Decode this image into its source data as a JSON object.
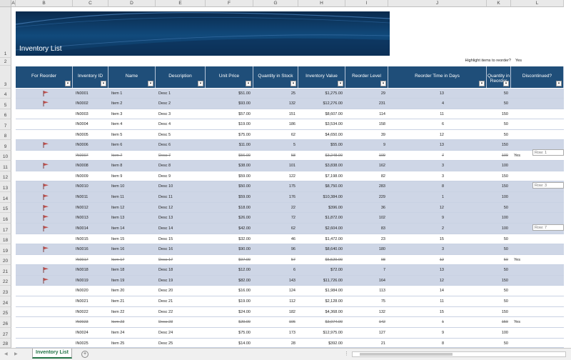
{
  "workbook": {
    "sheet_tab": "Inventory List",
    "add_sheet_symbol": "+",
    "separator": "⋮",
    "nav_prev": "◀",
    "nav_next": "▶"
  },
  "columns": [
    "A",
    "B",
    "C",
    "D",
    "E",
    "F",
    "G",
    "H",
    "I",
    "J",
    "K",
    "L"
  ],
  "row_numbers": [
    "1",
    "2",
    "3",
    "4",
    "5",
    "6",
    "7",
    "8",
    "9",
    "10",
    "11",
    "12",
    "13",
    "14",
    "15",
    "16",
    "17",
    "18",
    "19",
    "20",
    "21",
    "22",
    "23",
    "24",
    "25",
    "26",
    "27",
    "28"
  ],
  "banner": {
    "title": "Inventory List"
  },
  "highlight": {
    "label": "Highlight items to reorder?",
    "value": "Yes"
  },
  "table": {
    "headers": [
      "For Reorder",
      "Inventory ID",
      "Name",
      "Description",
      "Unit Price",
      "Quantity in Stock",
      "Inventory Value",
      "Reorder Level",
      "Reorder Time in Days",
      "Quantity in Reorder",
      "Discontinued?"
    ],
    "filter_symbol": "▾",
    "rows": [
      {
        "flag": true,
        "id": "IN0001",
        "name": "Item 1",
        "desc": "Desc 1",
        "price": "$51.00",
        "qty": "25",
        "value": "$1,275.00",
        "level": "29",
        "days": "13",
        "reorder": "50",
        "disc": "",
        "band": true,
        "strike": false
      },
      {
        "flag": true,
        "id": "IN0002",
        "name": "Item 2",
        "desc": "Desc 2",
        "price": "$93.00",
        "qty": "132",
        "value": "$12,276.00",
        "level": "231",
        "days": "4",
        "reorder": "50",
        "disc": "",
        "band": true,
        "strike": false
      },
      {
        "flag": false,
        "id": "IN0003",
        "name": "Item 3",
        "desc": "Desc 3",
        "price": "$57.00",
        "qty": "151",
        "value": "$8,607.00",
        "level": "114",
        "days": "11",
        "reorder": "150",
        "disc": "",
        "band": false,
        "strike": false
      },
      {
        "flag": false,
        "id": "IN0004",
        "name": "Item 4",
        "desc": "Desc 4",
        "price": "$19.00",
        "qty": "186",
        "value": "$3,534.00",
        "level": "158",
        "days": "6",
        "reorder": "50",
        "disc": "",
        "band": false,
        "strike": false
      },
      {
        "flag": false,
        "id": "IN0005",
        "name": "Item 5",
        "desc": "Desc 5",
        "price": "$75.00",
        "qty": "62",
        "value": "$4,650.00",
        "level": "39",
        "days": "12",
        "reorder": "50",
        "disc": "",
        "band": false,
        "strike": false
      },
      {
        "flag": true,
        "id": "IN0006",
        "name": "Item 6",
        "desc": "Desc 6",
        "price": "$11.00",
        "qty": "5",
        "value": "$55.00",
        "level": "9",
        "days": "13",
        "reorder": "150",
        "disc": "",
        "band": true,
        "strike": false
      },
      {
        "flag": false,
        "id": "IN0007",
        "name": "Item 7",
        "desc": "Desc 7",
        "price": "$56.00",
        "qty": "58",
        "value": "$3,248.00",
        "level": "109",
        "days": "7",
        "reorder": "100",
        "disc": "Yes",
        "band": false,
        "strike": true
      },
      {
        "flag": true,
        "id": "IN0008",
        "name": "Item 8",
        "desc": "Desc 8",
        "price": "$38.00",
        "qty": "101",
        "value": "$3,838.00",
        "level": "162",
        "days": "3",
        "reorder": "100",
        "disc": "",
        "band": true,
        "strike": false
      },
      {
        "flag": false,
        "id": "IN0009",
        "name": "Item 9",
        "desc": "Desc 9",
        "price": "$59.00",
        "qty": "122",
        "value": "$7,198.00",
        "level": "82",
        "days": "3",
        "reorder": "150",
        "disc": "",
        "band": false,
        "strike": false
      },
      {
        "flag": true,
        "id": "IN0010",
        "name": "Item 10",
        "desc": "Desc 10",
        "price": "$50.00",
        "qty": "175",
        "value": "$8,750.00",
        "level": "283",
        "days": "8",
        "reorder": "150",
        "disc": "",
        "band": true,
        "strike": false
      },
      {
        "flag": true,
        "id": "IN0011",
        "name": "Item 11",
        "desc": "Desc 11",
        "price": "$59.00",
        "qty": "176",
        "value": "$10,384.00",
        "level": "229",
        "days": "1",
        "reorder": "100",
        "disc": "",
        "band": true,
        "strike": false
      },
      {
        "flag": true,
        "id": "IN0012",
        "name": "Item 12",
        "desc": "Desc 12",
        "price": "$18.00",
        "qty": "22",
        "value": "$396.00",
        "level": "36",
        "days": "12",
        "reorder": "50",
        "disc": "",
        "band": true,
        "strike": false
      },
      {
        "flag": true,
        "id": "IN0013",
        "name": "Item 13",
        "desc": "Desc 13",
        "price": "$26.00",
        "qty": "72",
        "value": "$1,872.00",
        "level": "102",
        "days": "9",
        "reorder": "100",
        "disc": "",
        "band": true,
        "strike": false
      },
      {
        "flag": true,
        "id": "IN0014",
        "name": "Item 14",
        "desc": "Desc 14",
        "price": "$42.00",
        "qty": "62",
        "value": "$2,604.00",
        "level": "83",
        "days": "2",
        "reorder": "100",
        "disc": "",
        "band": true,
        "strike": false
      },
      {
        "flag": false,
        "id": "IN0015",
        "name": "Item 15",
        "desc": "Desc 15",
        "price": "$32.00",
        "qty": "46",
        "value": "$1,472.00",
        "level": "23",
        "days": "15",
        "reorder": "50",
        "disc": "",
        "band": false,
        "strike": false
      },
      {
        "flag": true,
        "id": "IN0016",
        "name": "Item 16",
        "desc": "Desc 16",
        "price": "$90.00",
        "qty": "96",
        "value": "$8,640.00",
        "level": "180",
        "days": "3",
        "reorder": "50",
        "disc": "",
        "band": true,
        "strike": false
      },
      {
        "flag": false,
        "id": "IN0017",
        "name": "Item 17",
        "desc": "Desc 17",
        "price": "$97.00",
        "qty": "57",
        "value": "$5,529.00",
        "level": "98",
        "days": "12",
        "reorder": "50",
        "disc": "Yes",
        "band": false,
        "strike": true
      },
      {
        "flag": true,
        "id": "IN0018",
        "name": "Item 18",
        "desc": "Desc 18",
        "price": "$12.00",
        "qty": "6",
        "value": "$72.00",
        "level": "7",
        "days": "13",
        "reorder": "50",
        "disc": "",
        "band": true,
        "strike": false
      },
      {
        "flag": true,
        "id": "IN0019",
        "name": "Item 19",
        "desc": "Desc 19",
        "price": "$82.00",
        "qty": "143",
        "value": "$11,726.00",
        "level": "164",
        "days": "12",
        "reorder": "150",
        "disc": "",
        "band": true,
        "strike": false
      },
      {
        "flag": false,
        "id": "IN0020",
        "name": "Item 20",
        "desc": "Desc 20",
        "price": "$16.00",
        "qty": "124",
        "value": "$1,984.00",
        "level": "113",
        "days": "14",
        "reorder": "50",
        "disc": "",
        "band": false,
        "strike": false
      },
      {
        "flag": false,
        "id": "IN0021",
        "name": "Item 21",
        "desc": "Desc 21",
        "price": "$19.00",
        "qty": "112",
        "value": "$2,128.00",
        "level": "75",
        "days": "11",
        "reorder": "50",
        "disc": "",
        "band": false,
        "strike": false
      },
      {
        "flag": false,
        "id": "IN0022",
        "name": "Item 22",
        "desc": "Desc 22",
        "price": "$24.00",
        "qty": "182",
        "value": "$4,368.00",
        "level": "132",
        "days": "15",
        "reorder": "150",
        "disc": "",
        "band": false,
        "strike": false
      },
      {
        "flag": false,
        "id": "IN0023",
        "name": "Item 23",
        "desc": "Desc 23",
        "price": "$29.00",
        "qty": "106",
        "value": "$3,074.00",
        "level": "142",
        "days": "1",
        "reorder": "150",
        "disc": "Yes",
        "band": false,
        "strike": true
      },
      {
        "flag": false,
        "id": "IN0024",
        "name": "Item 24",
        "desc": "Desc 24",
        "price": "$75.00",
        "qty": "173",
        "value": "$12,975.00",
        "level": "127",
        "days": "9",
        "reorder": "100",
        "disc": "",
        "band": false,
        "strike": false
      },
      {
        "flag": false,
        "id": "IN0025",
        "name": "Item 25",
        "desc": "Desc 25",
        "price": "$14.00",
        "qty": "28",
        "value": "$392.00",
        "level": "21",
        "days": "8",
        "reorder": "50",
        "disc": "",
        "band": false,
        "strike": false
      }
    ]
  },
  "side_boxes": [
    {
      "text": "Row: 1"
    },
    {
      "text": "Row: 3"
    },
    {
      "text": "Row: 7"
    }
  ],
  "colors": {
    "header_bg": "#1f4e79",
    "band_bg": "#ced6e6",
    "plain_bg": "#ffffff",
    "flag": "#c0504d",
    "tab_accent": "#217346"
  }
}
